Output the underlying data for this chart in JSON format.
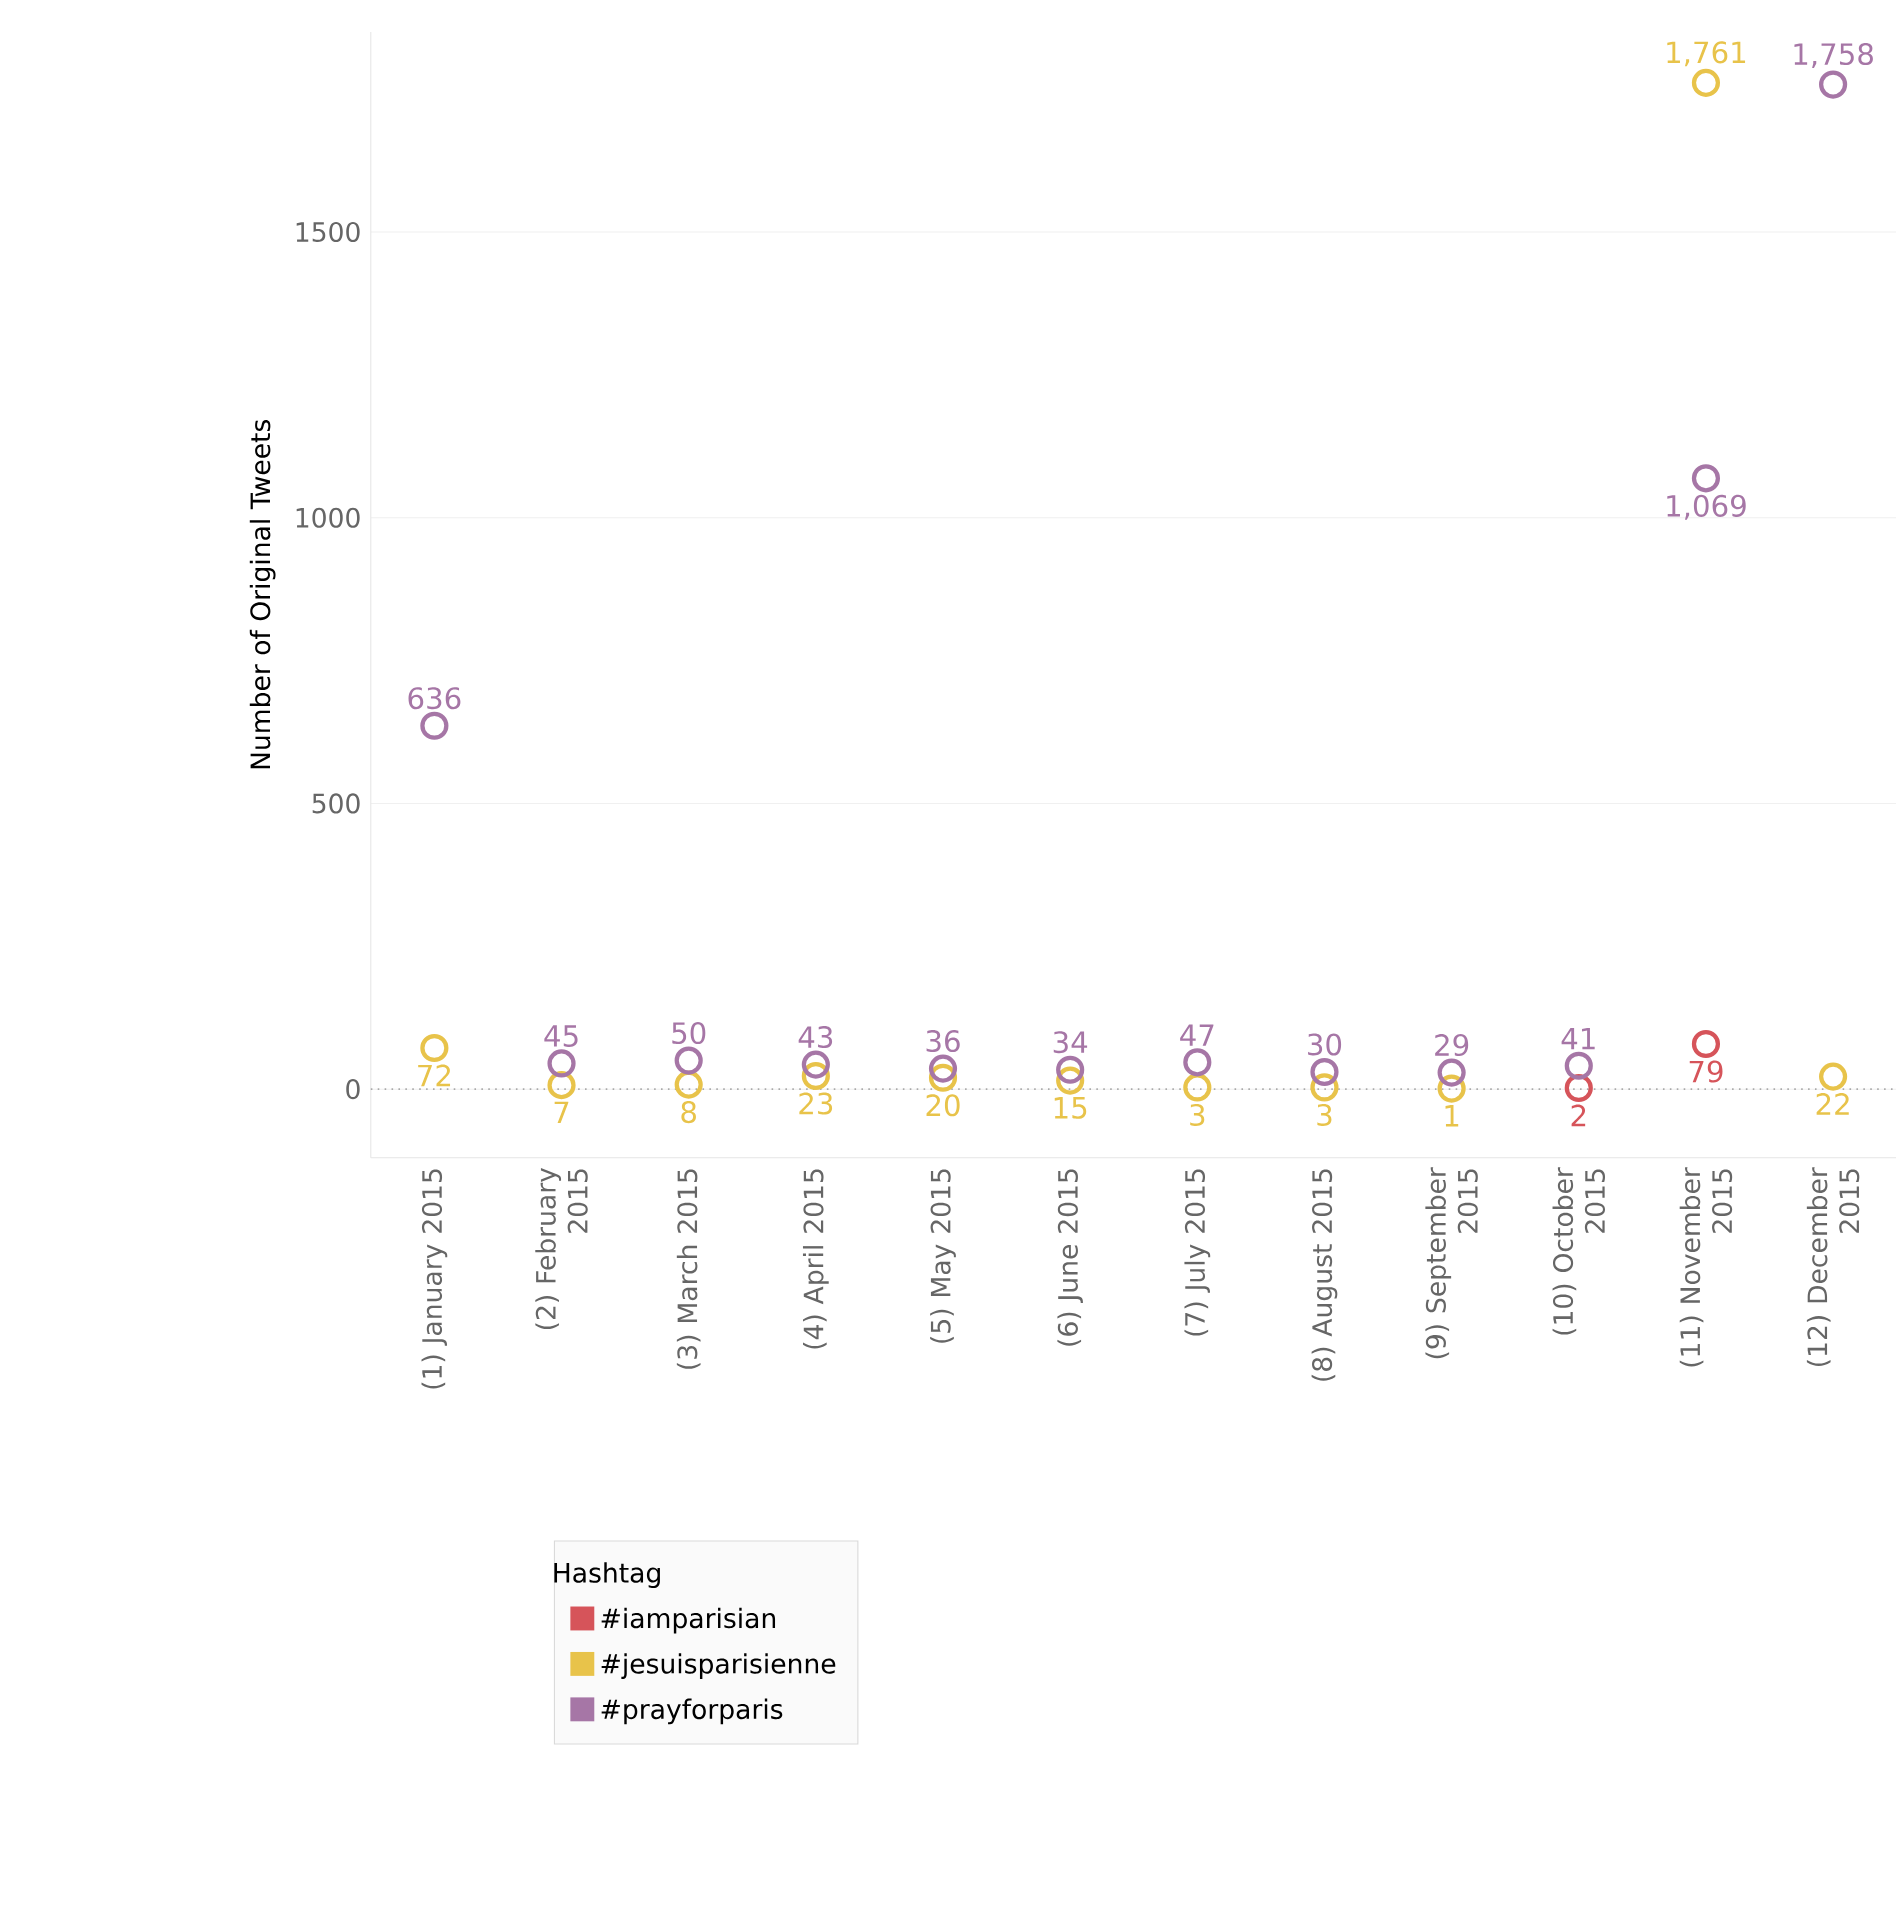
{
  "chart_data": {
    "type": "scatter",
    "ylabel": "Number of Original Tweets",
    "legend_title": "Hashtag",
    "categories": [
      "(1) January 2015",
      "(2) February 2015",
      "(3) March 2015",
      "(4) April 2015",
      "(5) May 2015",
      "(6) June 2015",
      "(7) July 2015",
      "(8) August 2015",
      "(9) September 2015",
      "(10) October 2015",
      "(11) November 2015",
      "(12) December 2015"
    ],
    "series": [
      {
        "name": "#iamparisian",
        "color": "#d6545a",
        "values": [
          null,
          null,
          null,
          null,
          null,
          null,
          null,
          null,
          null,
          2,
          79,
          null
        ],
        "value_labels": [
          null,
          null,
          null,
          null,
          null,
          null,
          null,
          null,
          null,
          "2",
          "79",
          null
        ]
      },
      {
        "name": "#jesuisparisienne",
        "color": "#e8c34a",
        "values": [
          72,
          7,
          8,
          23,
          20,
          15,
          3,
          3,
          1,
          null,
          1761,
          22
        ],
        "value_labels": [
          "72",
          "7",
          "8",
          "23",
          "20",
          "15",
          "3",
          "3",
          "1",
          null,
          "1,761",
          "22"
        ]
      },
      {
        "name": "#prayforparis",
        "color": "#a676a6",
        "values": [
          636,
          45,
          50,
          43,
          36,
          34,
          47,
          30,
          29,
          41,
          1069,
          1758
        ],
        "value_labels": [
          "636",
          "45",
          "50",
          "43",
          "36",
          "34",
          "47",
          "30",
          "29",
          "41",
          "1,069",
          "1,758"
        ]
      }
    ],
    "ylim": [
      -120,
      1850
    ],
    "yticks": [
      0,
      500,
      1000,
      1500
    ],
    "grid": "y",
    "legend": "bottom",
    "marker": "circle",
    "ref_lines": [
      {
        "axis": "y",
        "value": 0,
        "line_style": "dotted",
        "color": "#aaaaaa"
      }
    ]
  }
}
